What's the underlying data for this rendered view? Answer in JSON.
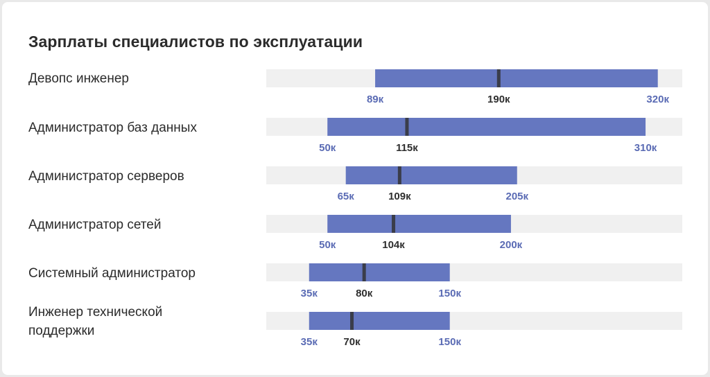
{
  "chart_data": {
    "type": "bar",
    "title": "Зарплаты специалистов по эксплуатации",
    "xlim": [
      0,
      340
    ],
    "unit_suffix": "к",
    "rows": [
      {
        "name": "Девопс инженер",
        "min": 89,
        "median": 190,
        "max": 320,
        "min_label": "89к",
        "median_label": "190к",
        "max_label": "320к"
      },
      {
        "name": "Администратор баз данных",
        "min": 50,
        "median": 115,
        "max": 310,
        "min_label": "50к",
        "median_label": "115к",
        "max_label": "310к"
      },
      {
        "name": "Администратор серверов",
        "min": 65,
        "median": 109,
        "max": 205,
        "min_label": "65к",
        "median_label": "109к",
        "max_label": "205к"
      },
      {
        "name": "Администратор сетей",
        "min": 50,
        "median": 104,
        "max": 200,
        "min_label": "50к",
        "median_label": "104к",
        "max_label": "200к"
      },
      {
        "name": "Системный администратор",
        "min": 35,
        "median": 80,
        "max": 150,
        "min_label": "35к",
        "median_label": "80к",
        "max_label": "150к"
      },
      {
        "name": "Инженер технической поддержки",
        "min": 35,
        "median": 70,
        "max": 150,
        "min_label": "35к",
        "median_label": "70к",
        "max_label": "150к"
      }
    ],
    "colors": {
      "range": "#6577c0",
      "median": "#3a3d4a",
      "track": "#f0f0f0",
      "range_label": "#5a6bb4",
      "median_label": "#2e2e2e"
    }
  }
}
